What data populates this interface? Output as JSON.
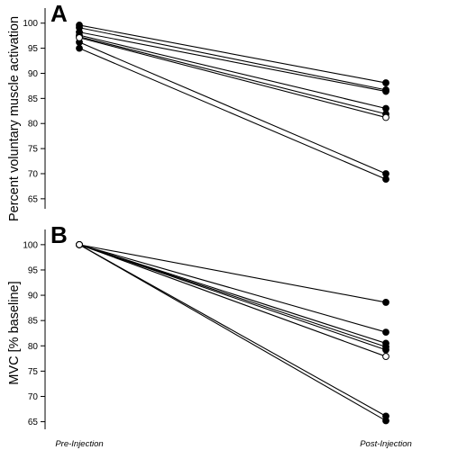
{
  "chart_data": [
    {
      "type": "line",
      "panel_label": "A",
      "ylabel": "Percent voluntary muscle activation",
      "categories": [
        "Pre-Injection",
        "Post-Injection"
      ],
      "ylim": [
        63,
        103
      ],
      "yticks": [
        65,
        70,
        75,
        80,
        85,
        90,
        95,
        100
      ],
      "grid": false,
      "series": [
        {
          "values": [
            99.6,
            88.1
          ],
          "marker": "filled"
        },
        {
          "values": [
            99.1,
            86.7
          ],
          "marker": "filled"
        },
        {
          "values": [
            98.2,
            86.4
          ],
          "marker": "filled"
        },
        {
          "values": [
            97.6,
            83.0
          ],
          "marker": "filled"
        },
        {
          "values": [
            97.3,
            81.9
          ],
          "marker": "filled"
        },
        {
          "values": [
            97.1,
            81.2
          ],
          "marker": "open"
        },
        {
          "values": [
            96.2,
            70.0
          ],
          "marker": "filled"
        },
        {
          "values": [
            95.0,
            68.9
          ],
          "marker": "filled"
        }
      ]
    },
    {
      "type": "line",
      "panel_label": "B",
      "ylabel": "MVC [% baseline]",
      "categories": [
        "Pre-Injection",
        "Post-Injection"
      ],
      "ylim": [
        63.5,
        103
      ],
      "yticks": [
        65,
        70,
        75,
        80,
        85,
        90,
        95,
        100
      ],
      "grid": false,
      "series": [
        {
          "values": [
            100,
            88.6
          ],
          "marker": "filled"
        },
        {
          "values": [
            100,
            82.7
          ],
          "marker": "filled"
        },
        {
          "values": [
            100,
            80.5
          ],
          "marker": "filled"
        },
        {
          "values": [
            100,
            79.8
          ],
          "marker": "filled"
        },
        {
          "values": [
            100,
            79.2
          ],
          "marker": "filled"
        },
        {
          "values": [
            100,
            77.9
          ],
          "marker": "open"
        },
        {
          "values": [
            100,
            66.1
          ],
          "marker": "filled"
        },
        {
          "values": [
            100,
            65.2
          ],
          "marker": "filled"
        }
      ]
    }
  ]
}
